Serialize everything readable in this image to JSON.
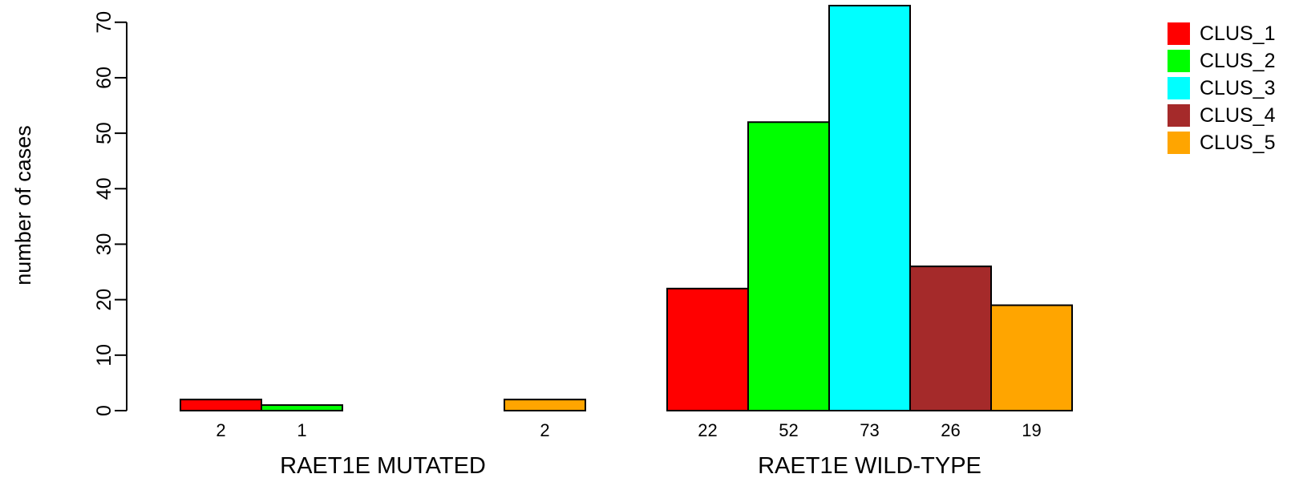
{
  "chart_data": {
    "type": "bar",
    "ylabel": "number of cases",
    "ylim": [
      0,
      73
    ],
    "y_ticks": [
      "0",
      "10",
      "20",
      "30",
      "40",
      "50",
      "60",
      "70"
    ],
    "grid": false,
    "legend_position": "top-right",
    "series": [
      {
        "name": "CLUS_1",
        "color": "#ff0000"
      },
      {
        "name": "CLUS_2",
        "color": "#00ff00"
      },
      {
        "name": "CLUS_3",
        "color": "#00ffff"
      },
      {
        "name": "CLUS_4",
        "color": "#a52a2a"
      },
      {
        "name": "CLUS_5",
        "color": "#ffa500"
      }
    ],
    "groups": [
      {
        "label": "RAET1E MUTATED",
        "values": [
          2,
          1,
          0,
          0,
          2
        ],
        "count_labels": [
          "2",
          "1",
          "",
          "",
          "2"
        ]
      },
      {
        "label": "RAET1E WILD-TYPE",
        "values": [
          22,
          52,
          73,
          26,
          19
        ],
        "count_labels": [
          "22",
          "52",
          "73",
          "26",
          "19"
        ]
      }
    ]
  }
}
